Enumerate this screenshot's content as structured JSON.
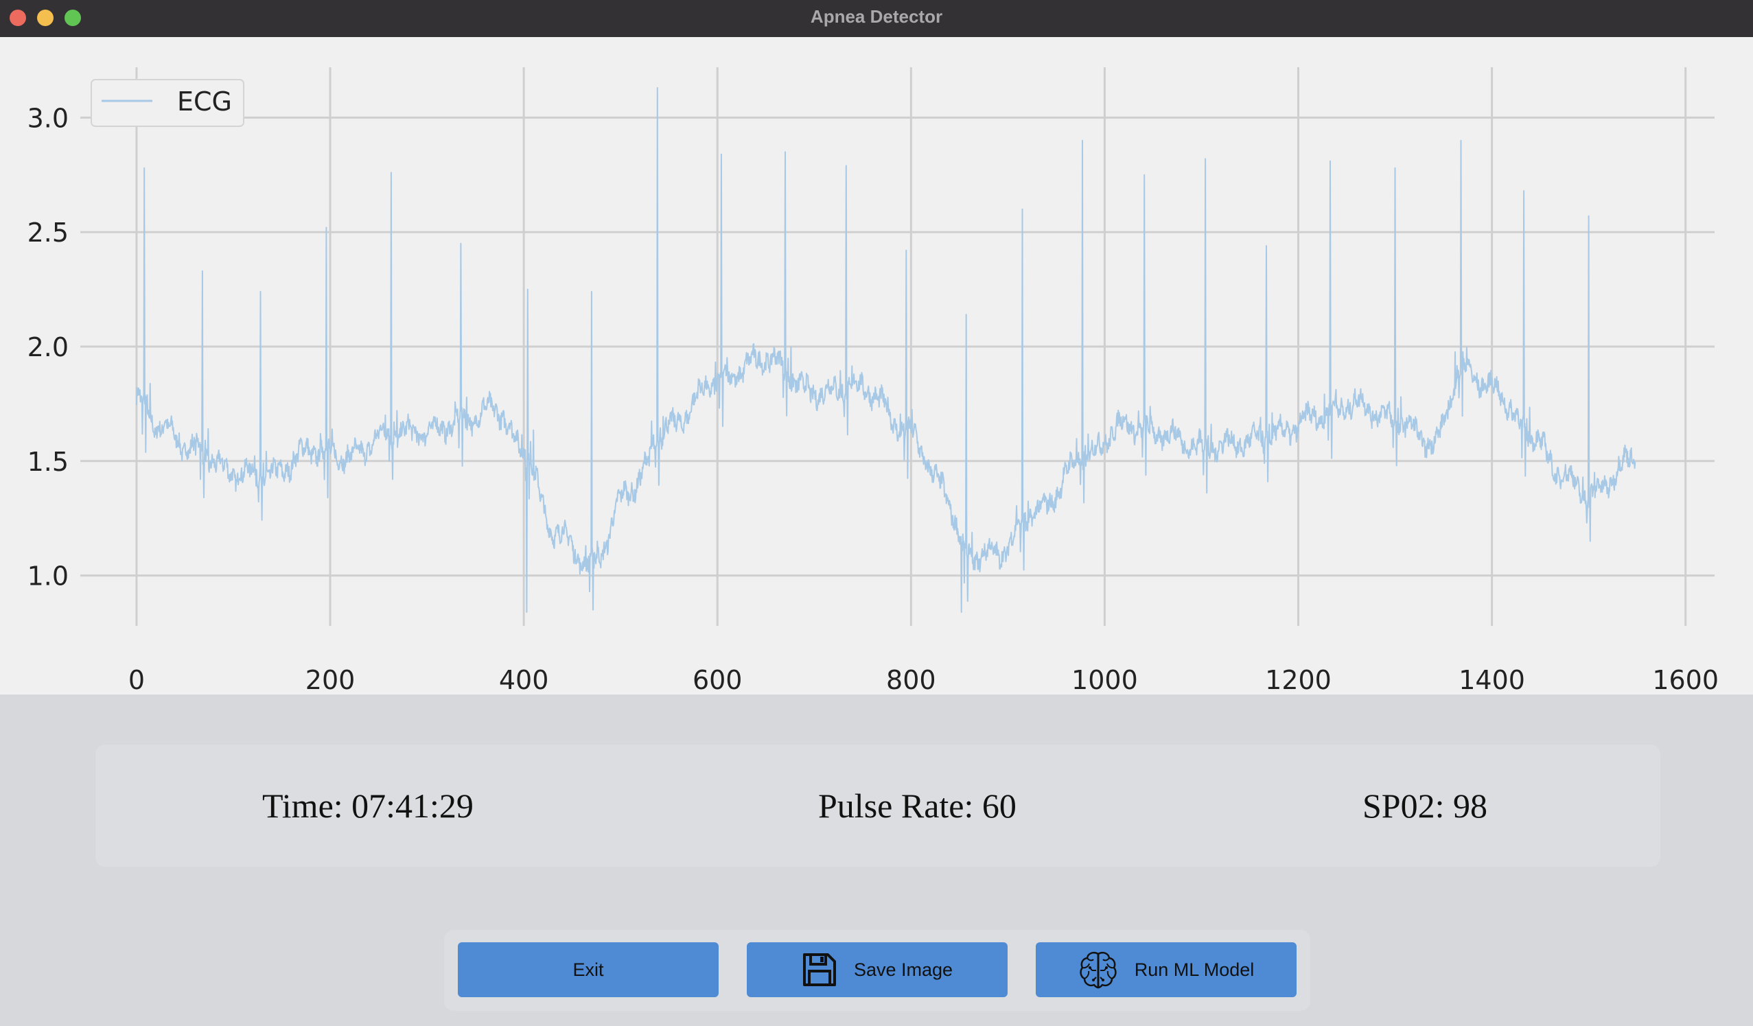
{
  "window": {
    "title": "Apnea Detector"
  },
  "chart_data": {
    "type": "line",
    "title": "",
    "xlabel": "",
    "ylabel": "",
    "xlim": [
      -90,
      1630
    ],
    "ylim": [
      0.78,
      3.22
    ],
    "xticks": [
      0,
      200,
      400,
      600,
      800,
      1000,
      1200,
      1400,
      1600
    ],
    "yticks": [
      1.0,
      1.5,
      2.0,
      2.5,
      3.0
    ],
    "xtick_labels": [
      "0",
      "200",
      "400",
      "600",
      "800",
      "1000",
      "1200",
      "1400",
      "1600"
    ],
    "ytick_labels": [
      "1.0",
      "1.5",
      "2.0",
      "2.5",
      "3.0"
    ],
    "grid": true,
    "legend_position": "top-left",
    "series": [
      {
        "name": "ECG",
        "color": "#a7c9e6",
        "baseline": {
          "x": [
            0,
            20,
            60,
            100,
            140,
            180,
            220,
            260,
            300,
            340,
            370,
            400,
            430,
            470,
            510,
            550,
            600,
            650,
            700,
            750,
            800,
            830,
            860,
            890,
            930,
            980,
            1020,
            1060,
            1100,
            1140,
            1180,
            1220,
            1260,
            1300,
            1340,
            1370,
            1400,
            1440,
            1470,
            1500,
            1550
          ],
          "y": [
            1.78,
            1.66,
            1.55,
            1.45,
            1.44,
            1.55,
            1.52,
            1.62,
            1.63,
            1.68,
            1.73,
            1.55,
            1.2,
            1.05,
            1.38,
            1.65,
            1.85,
            1.95,
            1.8,
            1.82,
            1.62,
            1.4,
            1.08,
            1.1,
            1.28,
            1.52,
            1.66,
            1.62,
            1.56,
            1.58,
            1.62,
            1.7,
            1.75,
            1.68,
            1.58,
            1.9,
            1.82,
            1.62,
            1.45,
            1.35,
            1.52
          ]
        },
        "peaks": [
          {
            "x": 8,
            "y": 2.78
          },
          {
            "x": 68,
            "y": 2.33
          },
          {
            "x": 128,
            "y": 2.24
          },
          {
            "x": 196,
            "y": 2.52
          },
          {
            "x": 263,
            "y": 2.76
          },
          {
            "x": 335,
            "y": 2.45
          },
          {
            "x": 404,
            "y": 2.25
          },
          {
            "x": 470,
            "y": 2.24
          },
          {
            "x": 538,
            "y": 3.13
          },
          {
            "x": 604,
            "y": 2.84
          },
          {
            "x": 670,
            "y": 2.85
          },
          {
            "x": 733,
            "y": 2.79
          },
          {
            "x": 795,
            "y": 2.42
          },
          {
            "x": 857,
            "y": 2.14
          },
          {
            "x": 915,
            "y": 2.6
          },
          {
            "x": 977,
            "y": 2.9
          },
          {
            "x": 1041,
            "y": 2.75
          },
          {
            "x": 1104,
            "y": 2.82
          },
          {
            "x": 1167,
            "y": 2.44
          },
          {
            "x": 1233,
            "y": 2.81
          },
          {
            "x": 1300,
            "y": 2.78
          },
          {
            "x": 1368,
            "y": 2.9
          },
          {
            "x": 1433,
            "y": 2.68
          },
          {
            "x": 1500,
            "y": 2.57
          }
        ],
        "troughs": [
          {
            "x": 403,
            "y": 0.84
          },
          {
            "x": 852,
            "y": 0.84
          }
        ],
        "x_end": 1548
      }
    ]
  },
  "info": {
    "time": "Time: 07:41:29",
    "pulse_rate": "Pulse Rate: 60",
    "spo2": "SP02: 98"
  },
  "buttons": {
    "exit_label": "Exit",
    "save_label": "Save Image",
    "run_label": "Run ML Model"
  },
  "icons": {
    "save": "floppy-disk-icon",
    "run": "brain-icon"
  }
}
